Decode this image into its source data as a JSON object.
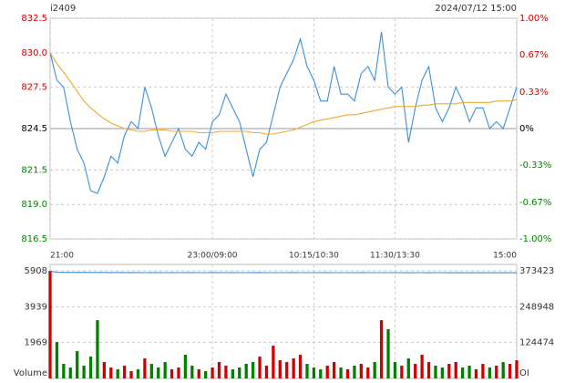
{
  "chart_data": [
    {
      "type": "line",
      "title": "i2409",
      "subtitle": "2024/07/12 15:00",
      "up_color": "#d00000",
      "down_color": "#008000",
      "x": [
        0,
        5,
        10,
        15,
        20,
        25,
        30,
        35,
        40,
        45,
        50,
        55,
        60,
        65,
        70,
        75,
        80,
        85,
        90,
        95,
        100,
        105,
        110,
        115,
        120,
        125,
        130,
        135,
        140,
        145,
        150,
        155,
        160,
        165,
        170,
        175,
        180,
        185,
        190,
        195,
        200,
        205,
        210,
        215,
        220,
        225,
        230,
        235,
        240,
        245,
        250,
        255,
        260,
        265,
        270,
        275,
        280,
        285,
        290,
        295,
        300,
        305,
        310,
        315,
        320,
        325,
        330,
        335,
        340,
        345
      ],
      "xlim": [
        0,
        345
      ],
      "xticks": [
        {
          "value": 0,
          "label": "21:00"
        },
        {
          "value": 120,
          "label": "23:00/09:00"
        },
        {
          "value": 195,
          "label": "10:15/10:30"
        },
        {
          "value": 255,
          "label": "11:30/13:30"
        },
        {
          "value": 345,
          "label": "15:00"
        }
      ],
      "ylim": [
        816.5,
        832.5
      ],
      "yticks": [
        816.5,
        {
          "value": 819,
          "label": "819.0"
        },
        821.5,
        824.5,
        827.5,
        {
          "value": 830,
          "label": "830.0"
        },
        832.5
      ],
      "y2lim": [
        -1,
        1
      ],
      "y2ticks": [
        {
          "value": -1,
          "label": "-1.00%"
        },
        {
          "value": -0.67,
          "label": "-0.67%"
        },
        {
          "value": -0.33,
          "label": "-0.33%"
        },
        {
          "value": 0,
          "label": "0%"
        },
        {
          "value": 0.33,
          "label": "0.33%"
        },
        {
          "value": 0.67,
          "label": "0.67%"
        },
        {
          "value": 1,
          "label": "1.00%"
        }
      ],
      "grid": true,
      "series": [
        {
          "color": "#3b8fd8",
          "values": [
            830,
            828,
            827.5,
            825,
            823,
            822,
            820,
            819.8,
            821,
            822.5,
            822,
            824,
            825,
            824.5,
            827.5,
            826,
            824,
            822.5,
            823.5,
            824.5,
            823,
            822.5,
            823.5,
            823,
            825,
            825.5,
            827,
            826,
            825,
            823,
            821,
            823,
            823.5,
            825.5,
            827.5,
            828.5,
            829.5,
            831,
            829,
            828,
            826.5,
            826.5,
            829,
            827,
            827,
            826.5,
            828.5,
            829,
            828,
            831.5,
            827.5,
            827,
            827.5,
            823.5,
            826,
            828,
            829,
            826,
            825,
            826,
            827.5,
            826.5,
            825,
            826,
            826,
            824.5,
            825,
            824.5,
            826,
            827.5
          ]
        },
        {
          "color": "#f0a830",
          "values": [
            830,
            829.2,
            828.6,
            827.9,
            827.2,
            826.5,
            826,
            825.6,
            825.2,
            824.9,
            824.7,
            824.5,
            824.4,
            824.3,
            824.3,
            824.4,
            824.4,
            824.4,
            824.3,
            824.3,
            824.3,
            824.3,
            824.2,
            824.2,
            824.2,
            824.3,
            824.3,
            824.3,
            824.3,
            824.3,
            824.2,
            824.2,
            824.1,
            824.1,
            824.2,
            824.3,
            824.4,
            824.6,
            824.8,
            825,
            825.1,
            825.2,
            825.3,
            825.4,
            825.5,
            825.5,
            825.6,
            825.7,
            825.8,
            825.9,
            826,
            826.1,
            826.1,
            826.1,
            826.1,
            826.2,
            826.2,
            826.3,
            826.3,
            826.3,
            826.3,
            826.4,
            826.4,
            826.4,
            826.4,
            826.4,
            826.5,
            826.5,
            826.5,
            826.6
          ]
        }
      ]
    },
    {
      "type": "bar",
      "ylabel": "Volume",
      "y2label": "OI",
      "ylim": [
        0,
        5908
      ],
      "yticks": [
        1969,
        3939,
        5908
      ],
      "y2lim": [
        0,
        373423
      ],
      "y2ticks": [
        124474,
        248948,
        373423
      ],
      "series": [
        {
          "values": [
            5908,
            2000,
            800,
            600,
            1500,
            700,
            1200,
            3200,
            900,
            600,
            500,
            700,
            400,
            500,
            1100,
            800,
            600,
            900,
            500,
            600,
            1300,
            700,
            500,
            400,
            600,
            900,
            700,
            500,
            600,
            800,
            900,
            1200,
            700,
            1800,
            1000,
            900,
            1100,
            1300,
            800,
            600,
            500,
            700,
            900,
            600,
            500,
            700,
            800,
            600,
            900,
            3200,
            2700,
            900,
            700,
            1100,
            800,
            1300,
            900,
            700,
            600,
            800,
            900,
            600,
            700,
            500,
            800,
            600,
            700,
            900,
            800,
            1000
          ]
        },
        {
          "axis": "y2",
          "color": "#3b8fd8",
          "values": [
            372000,
            368500,
            368200,
            368000,
            368100,
            367900,
            367800,
            367600,
            367700,
            367500,
            367600,
            367400,
            367300,
            367500,
            367200,
            367400,
            367300,
            367100,
            367300,
            367200,
            367400,
            367300,
            367200,
            367100,
            367300,
            367400,
            367200,
            367300,
            367100,
            367200,
            367400,
            367300,
            367100,
            367000,
            367200,
            367100,
            367300,
            367200,
            367000,
            367100,
            367200,
            367300,
            367100,
            367000,
            367200,
            367100,
            367300,
            367200,
            367100,
            367000,
            367100,
            367200,
            367000,
            366900,
            367100,
            367000,
            366900,
            367100,
            367000,
            366900,
            367000,
            366800,
            366900,
            367000,
            366800,
            366900,
            366700,
            366800,
            366900,
            366800
          ]
        }
      ]
    }
  ]
}
